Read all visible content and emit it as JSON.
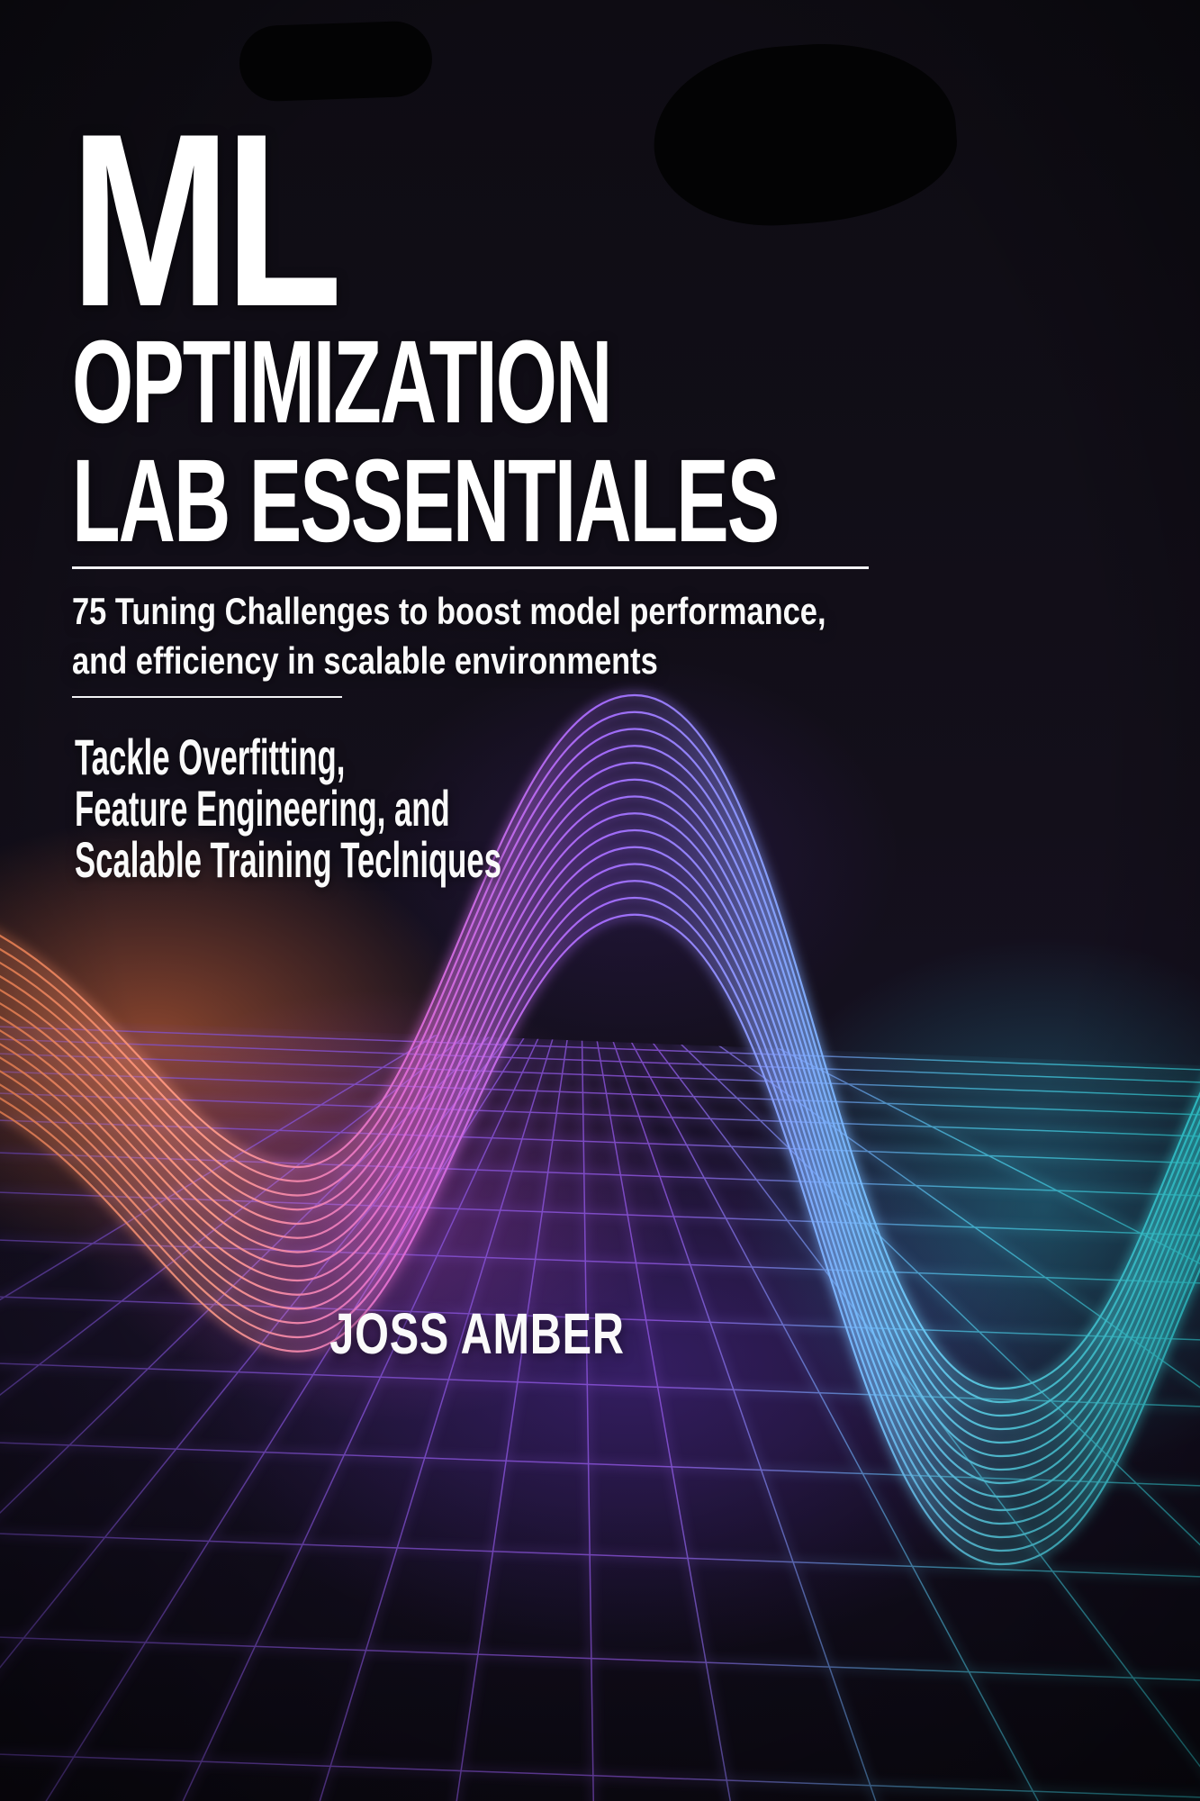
{
  "cover": {
    "title": {
      "line1": "ML",
      "line2": "OPTIMIZATION",
      "line3": "LAB ESSENTIALES"
    },
    "subtitle": {
      "line1": "75 Tuning Challenges to boost model performance,",
      "line2": "and efficiency in scalable environments"
    },
    "tagline": {
      "line1": "Tackle Overfitting,",
      "line2": "Feature Engineering, and",
      "line3": "Scalable Training Teclniques"
    },
    "author": "JOSS AMBER",
    "colors": {
      "background": "#120e18",
      "text": "#ffffff",
      "wave_orange": "#ff8c5a",
      "wave_magenta": "#e06bd8",
      "wave_purple": "#a76bff",
      "wave_cyan": "#35e0e8",
      "grid_purple": "#8f5ce8",
      "grid_cyan": "#46cfe0"
    }
  }
}
